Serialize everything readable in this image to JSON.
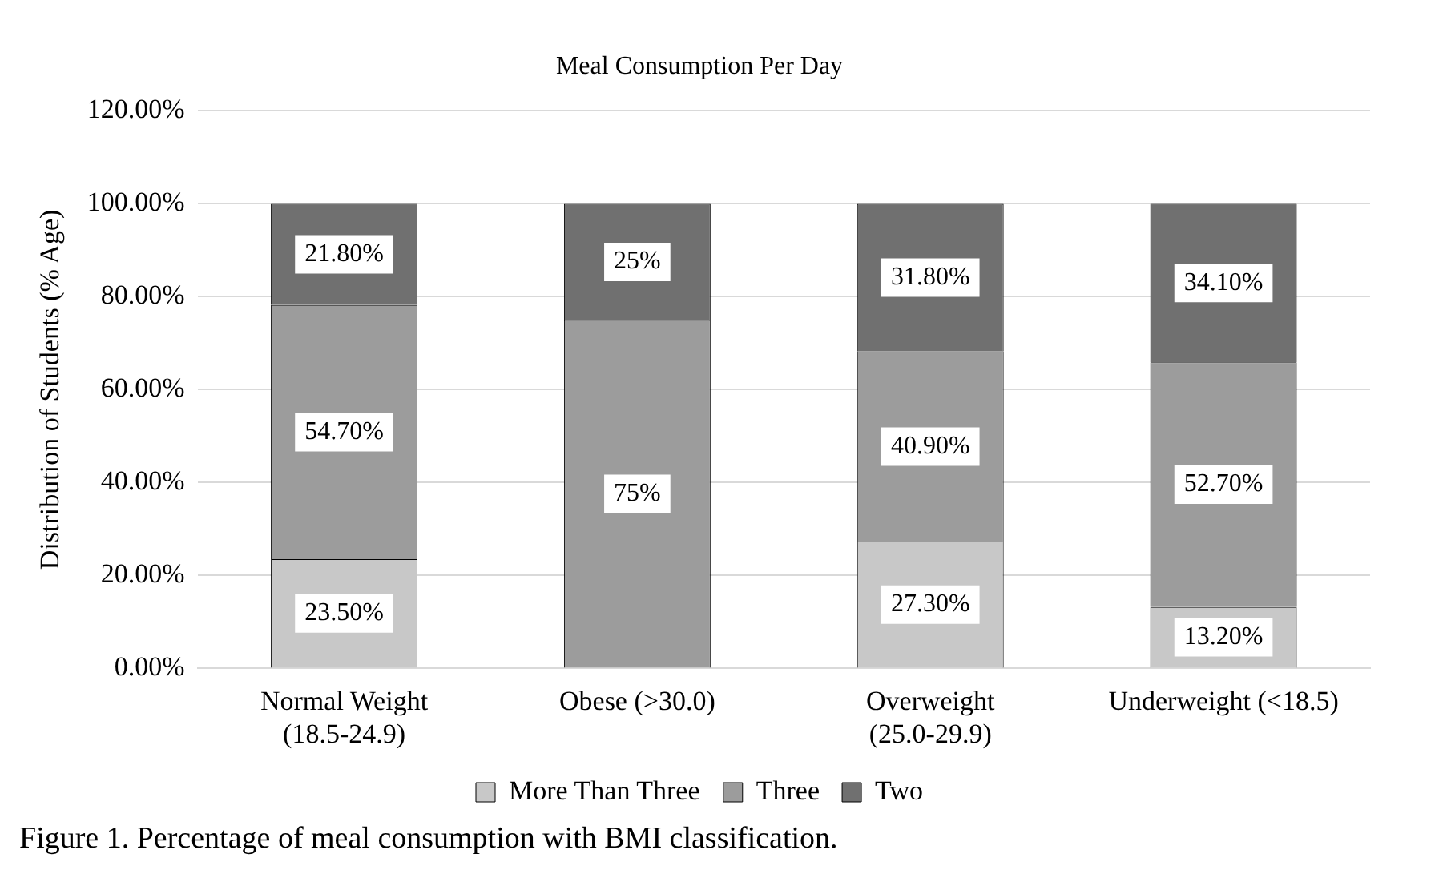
{
  "chart_data": {
    "type": "bar",
    "stacked": true,
    "title": "Meal Consumption Per Day",
    "ylabel": "Distribution of Students (% Age)",
    "categories": [
      "Normal Weight (18.5-24.9)",
      "Obese (>30.0)",
      "Overweight (25.0-29.9)",
      "Underweight (<18.5)"
    ],
    "series": [
      {
        "name": "More Than Three",
        "color": "#c8c8c8",
        "values": [
          23.5,
          null,
          27.3,
          13.2
        ],
        "value_labels": [
          "23.50%",
          null,
          "27.30%",
          "13.20%"
        ]
      },
      {
        "name": "Three",
        "color": "#9c9c9c",
        "values": [
          54.7,
          75,
          40.9,
          52.7
        ],
        "value_labels": [
          "54.70%",
          "75%",
          "40.90%",
          "52.70%"
        ]
      },
      {
        "name": "Two",
        "color": "#707070",
        "values": [
          21.8,
          25,
          31.8,
          34.1
        ],
        "value_labels": [
          "21.80%",
          "25%",
          "31.80%",
          "34.10%"
        ]
      }
    ],
    "ylim": [
      0,
      120
    ],
    "yticks": [
      {
        "value": 0,
        "label": "0.00%"
      },
      {
        "value": 20,
        "label": "20.00%"
      },
      {
        "value": 40,
        "label": "40.00%"
      },
      {
        "value": 60,
        "label": "60.00%"
      },
      {
        "value": 80,
        "label": "80.00%"
      },
      {
        "value": 100,
        "label": "100.00%"
      },
      {
        "value": 120,
        "label": "120.00%"
      }
    ],
    "grid": "y",
    "legend": "bottom",
    "annotations": [
      "Figure 1. Percentage of meal consumption with BMI classification."
    ]
  }
}
